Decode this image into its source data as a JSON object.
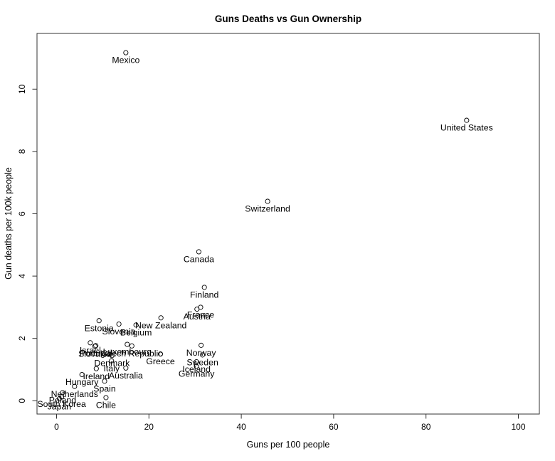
{
  "chart_data": {
    "type": "scatter",
    "title": "Guns Deaths vs Gun Ownership",
    "xlabel": "Guns per 100 people",
    "ylabel": "Gun deaths per 100k people",
    "xlim": [
      0,
      100
    ],
    "ylim": [
      0,
      11.5
    ],
    "xticks": [
      0,
      20,
      40,
      60,
      80,
      100
    ],
    "yticks": [
      0,
      2,
      4,
      6,
      8,
      10
    ],
    "grid": false,
    "legend": "none",
    "marker": "open-circle",
    "marker_color": "#000000",
    "label_position": "below-point",
    "points": [
      {
        "label": "Mexico",
        "x": 15.0,
        "y": 11.17
      },
      {
        "label": "United States",
        "x": 88.8,
        "y": 9.0
      },
      {
        "label": "Switzerland",
        "x": 45.7,
        "y": 6.4
      },
      {
        "label": "Canada",
        "x": 30.8,
        "y": 4.78
      },
      {
        "label": "Finland",
        "x": 32.0,
        "y": 3.64
      },
      {
        "label": "France",
        "x": 31.2,
        "y": 3.0
      },
      {
        "label": "Austria",
        "x": 30.4,
        "y": 2.94
      },
      {
        "label": "New Zealand",
        "x": 22.6,
        "y": 2.66
      },
      {
        "label": "Estonia",
        "x": 9.2,
        "y": 2.57
      },
      {
        "label": "Slovenia",
        "x": 13.5,
        "y": 2.46
      },
      {
        "label": "Belgium",
        "x": 17.2,
        "y": 2.43
      },
      {
        "label": "Israel",
        "x": 7.3,
        "y": 1.86
      },
      {
        "label": "Luxembourg",
        "x": 15.3,
        "y": 1.81
      },
      {
        "label": "Norway",
        "x": 31.3,
        "y": 1.78
      },
      {
        "label": "Portugal",
        "x": 8.5,
        "y": 1.77
      },
      {
        "label": "Czech Republic",
        "x": 16.3,
        "y": 1.76
      },
      {
        "label": "Slovakia",
        "x": 8.3,
        "y": 1.75
      },
      {
        "label": "Greece",
        "x": 22.5,
        "y": 1.5
      },
      {
        "label": "Sweden",
        "x": 31.6,
        "y": 1.47
      },
      {
        "label": "Denmark",
        "x": 12.0,
        "y": 1.45
      },
      {
        "label": "Italy",
        "x": 11.9,
        "y": 1.28
      },
      {
        "label": "Iceland",
        "x": 30.3,
        "y": 1.25
      },
      {
        "label": "Germany",
        "x": 30.3,
        "y": 1.1
      },
      {
        "label": "Australia",
        "x": 15.0,
        "y": 1.05
      },
      {
        "label": "Ireland",
        "x": 8.6,
        "y": 1.03
      },
      {
        "label": "Hungary",
        "x": 5.5,
        "y": 0.84
      },
      {
        "label": "Spain",
        "x": 10.4,
        "y": 0.63
      },
      {
        "label": "Netherlands",
        "x": 3.9,
        "y": 0.46
      },
      {
        "label": "Poland",
        "x": 1.3,
        "y": 0.26
      },
      {
        "label": "South Korea",
        "x": 1.1,
        "y": 0.13
      },
      {
        "label": "Chile",
        "x": 10.7,
        "y": 0.1
      },
      {
        "label": "Japan",
        "x": 0.6,
        "y": 0.06
      }
    ]
  },
  "colors": {
    "background": "#ffffff",
    "frame": "#333333",
    "text": "#000000"
  }
}
